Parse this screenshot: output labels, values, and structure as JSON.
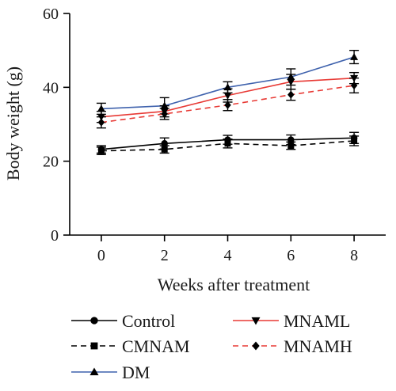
{
  "chart_data": {
    "type": "line",
    "xlabel": "Weeks after treatment",
    "ylabel": "Body weight (g)",
    "x": [
      0,
      2,
      4,
      6,
      8
    ],
    "xticks": [
      0,
      2,
      4,
      6,
      8
    ],
    "yticks": [
      0,
      20,
      40,
      60
    ],
    "xlim": [
      -1,
      9
    ],
    "ylim": [
      0,
      60
    ],
    "grid": false,
    "legend_position": "bottom",
    "series": [
      {
        "name": "Control",
        "values": [
          23.2,
          24.8,
          25.8,
          25.8,
          26.3
        ],
        "err": [
          1.0,
          1.5,
          1.2,
          1.3,
          1.5
        ],
        "color": "#000000",
        "dash": false,
        "marker": "circle"
      },
      {
        "name": "CMNAM",
        "values": [
          22.8,
          23.2,
          24.8,
          24.2,
          25.5
        ],
        "err": [
          1.0,
          1.0,
          1.2,
          1.0,
          1.3
        ],
        "color": "#000000",
        "dash": true,
        "marker": "square"
      },
      {
        "name": "DM",
        "values": [
          34.2,
          35.0,
          40.0,
          42.8,
          48.2
        ],
        "err": [
          1.5,
          2.2,
          1.5,
          2.2,
          1.8
        ],
        "color": "#3f62ad",
        "dash": false,
        "marker": "triangle-up"
      },
      {
        "name": "MNAML",
        "values": [
          32.0,
          33.5,
          37.8,
          41.5,
          42.5
        ],
        "err": [
          1.5,
          1.5,
          1.8,
          2.0,
          1.5
        ],
        "color": "#e83a35",
        "dash": false,
        "marker": "triangle-down"
      },
      {
        "name": "MNAMH",
        "values": [
          30.5,
          32.8,
          35.2,
          38.0,
          40.5
        ],
        "err": [
          1.5,
          1.5,
          1.5,
          1.5,
          2.0
        ],
        "color": "#e83a35",
        "dash": true,
        "marker": "diamond"
      }
    ]
  }
}
